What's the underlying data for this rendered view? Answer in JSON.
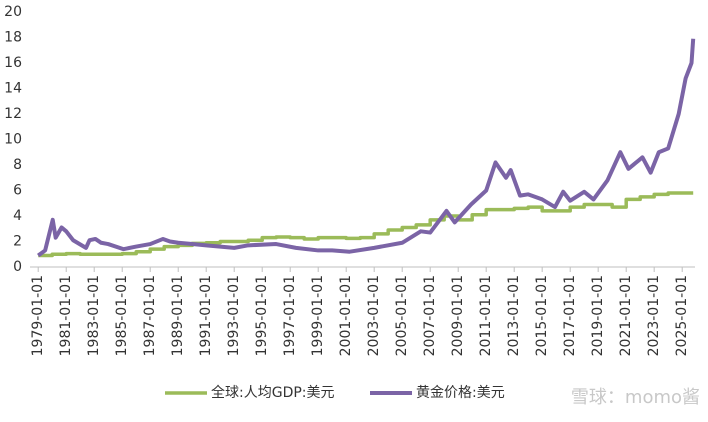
{
  "chart_data": {
    "type": "line",
    "xlim": [
      "1978-06-01",
      "2025-12-01"
    ],
    "xticks": [
      "1979-01-01",
      "1981-01-01",
      "1983-01-01",
      "1985-01-01",
      "1987-01-01",
      "1989-01-01",
      "1991-01-01",
      "1993-01-01",
      "1995-01-01",
      "1997-01-01",
      "1999-01-01",
      "2001-01-01",
      "2003-01-01",
      "2005-01-01",
      "2007-01-01",
      "2009-01-01",
      "2011-01-01",
      "2013-01-01",
      "2015-01-01",
      "2017-01-01",
      "2019-01-01",
      "2021-01-01",
      "2023-01-01",
      "2025-01-01"
    ],
    "ylim": [
      0,
      20
    ],
    "yticks": [
      0,
      2,
      4,
      6,
      8,
      10,
      12,
      14,
      16,
      18,
      20
    ],
    "grid": false,
    "legend": "bottom",
    "series": [
      {
        "name": "全球:人均GDP:美元",
        "color": "#9bbb59",
        "step": true,
        "x": [
          "1979-01-01",
          "1980-01-01",
          "1981-01-01",
          "1982-01-01",
          "1983-01-01",
          "1984-01-01",
          "1985-01-01",
          "1986-01-01",
          "1987-01-01",
          "1988-01-01",
          "1989-01-01",
          "1990-01-01",
          "1991-01-01",
          "1992-01-01",
          "1993-01-01",
          "1994-01-01",
          "1995-01-01",
          "1996-01-01",
          "1997-01-01",
          "1998-01-01",
          "1999-01-01",
          "2000-01-01",
          "2001-01-01",
          "2002-01-01",
          "2003-01-01",
          "2004-01-01",
          "2005-01-01",
          "2006-01-01",
          "2007-01-01",
          "2008-01-01",
          "2009-01-01",
          "2010-01-01",
          "2011-01-01",
          "2012-01-01",
          "2013-01-01",
          "2014-01-01",
          "2015-01-01",
          "2016-01-01",
          "2017-01-01",
          "2018-01-01",
          "2019-01-01",
          "2020-01-01",
          "2021-01-01",
          "2022-01-01",
          "2023-01-01",
          "2024-01-01",
          "2025-01-01",
          "2025-10-15"
        ],
        "values": [
          0.9,
          1.0,
          1.05,
          1.0,
          1.0,
          1.0,
          1.05,
          1.2,
          1.4,
          1.6,
          1.7,
          1.85,
          1.9,
          2.0,
          2.0,
          2.1,
          2.3,
          2.35,
          2.3,
          2.2,
          2.3,
          2.3,
          2.25,
          2.3,
          2.6,
          2.9,
          3.1,
          3.3,
          3.7,
          4.0,
          3.7,
          4.1,
          4.5,
          4.5,
          4.6,
          4.7,
          4.4,
          4.4,
          4.7,
          4.9,
          4.9,
          4.7,
          5.3,
          5.5,
          5.7,
          5.8,
          5.8,
          5.8
        ]
      },
      {
        "name": "黄金价格:美元",
        "color": "#7b64a6",
        "step": false,
        "x": [
          "1979-01-01",
          "1979-07-01",
          "1980-01-15",
          "1980-04-01",
          "1980-09-01",
          "1981-01-01",
          "1981-07-01",
          "1982-06-01",
          "1982-09-01",
          "1983-02-01",
          "1983-07-01",
          "1984-01-01",
          "1985-02-01",
          "1986-01-01",
          "1987-01-01",
          "1987-12-01",
          "1988-06-01",
          "1989-01-01",
          "1990-01-01",
          "1991-01-01",
          "1993-01-01",
          "1994-01-01",
          "1996-01-01",
          "1997-06-01",
          "1999-01-01",
          "2000-01-01",
          "2001-04-01",
          "2003-01-01",
          "2005-01-01",
          "2006-05-01",
          "2007-01-01",
          "2008-03-01",
          "2008-10-01",
          "2009-12-01",
          "2011-01-01",
          "2011-09-01",
          "2012-06-01",
          "2012-10-01",
          "2013-06-01",
          "2014-01-01",
          "2015-01-01",
          "2015-12-01",
          "2016-07-01",
          "2017-01-01",
          "2018-01-01",
          "2018-09-01",
          "2019-09-01",
          "2020-08-01",
          "2021-03-01",
          "2022-03-01",
          "2022-10-01",
          "2023-05-01",
          "2024-01-01",
          "2024-10-01",
          "2025-04-01",
          "2025-09-01",
          "2025-10-15"
        ],
        "values": [
          0.9,
          1.3,
          3.7,
          2.3,
          3.1,
          2.8,
          2.1,
          1.5,
          2.1,
          2.2,
          1.9,
          1.8,
          1.4,
          1.6,
          1.8,
          2.2,
          2.0,
          1.9,
          1.8,
          1.7,
          1.5,
          1.7,
          1.8,
          1.5,
          1.3,
          1.3,
          1.2,
          1.5,
          1.9,
          2.8,
          2.7,
          4.4,
          3.5,
          4.9,
          6.0,
          8.2,
          7.0,
          7.6,
          5.6,
          5.7,
          5.3,
          4.7,
          5.9,
          5.2,
          5.9,
          5.3,
          6.8,
          9.0,
          7.7,
          8.6,
          7.4,
          9.0,
          9.3,
          12.0,
          14.8,
          16.0,
          17.9
        ]
      }
    ],
    "watermark": "雪球：momo酱"
  }
}
